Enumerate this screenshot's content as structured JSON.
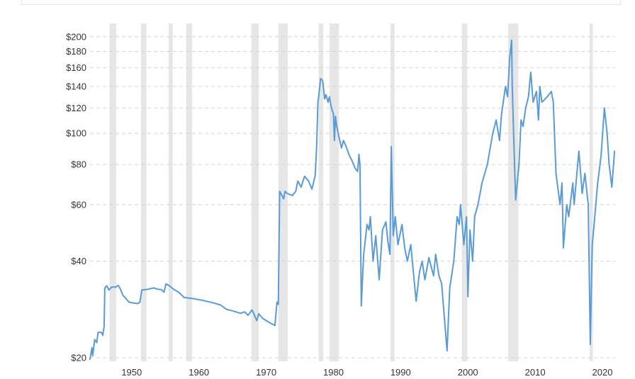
{
  "chart_data": {
    "type": "line",
    "title": "",
    "xlabel": "",
    "ylabel": "",
    "yscale": "log",
    "xlim": [
      1943.8,
      2021.9
    ],
    "ylim": [
      19.5,
      220
    ],
    "grid": true,
    "x_ticks": [
      {
        "value": 1950,
        "label": "1950"
      },
      {
        "value": 1960,
        "label": "1960"
      },
      {
        "value": 1970,
        "label": "1970"
      },
      {
        "value": 1980,
        "label": "1980"
      },
      {
        "value": 1990,
        "label": "1990"
      },
      {
        "value": 2000,
        "label": "2000"
      },
      {
        "value": 2010,
        "label": "2010"
      },
      {
        "value": 2020,
        "label": "2020"
      }
    ],
    "y_ticks": [
      {
        "value": 20,
        "label": "$20"
      },
      {
        "value": 40,
        "label": "$40"
      },
      {
        "value": 60,
        "label": "$60"
      },
      {
        "value": 80,
        "label": "$80"
      },
      {
        "value": 100,
        "label": "$100"
      },
      {
        "value": 120,
        "label": "$120"
      },
      {
        "value": 140,
        "label": "$140"
      },
      {
        "value": 160,
        "label": "$160"
      },
      {
        "value": 180,
        "label": "$180"
      },
      {
        "value": 200,
        "label": "$200"
      }
    ],
    "shaded_periods": [
      [
        1946.7,
        1947.7
      ],
      [
        1951.4,
        1952.2
      ],
      [
        1955.5,
        1956.1
      ],
      [
        1958.1,
        1959.0
      ],
      [
        1967.8,
        1968.9
      ],
      [
        1971.8,
        1973.2
      ],
      [
        1977.8,
        1978.5
      ],
      [
        1979.4,
        1980.8
      ],
      [
        1988.5,
        1989.1
      ],
      [
        1999.1,
        1999.9
      ],
      [
        2006.0,
        2007.5
      ],
      [
        2018.1,
        2018.6
      ]
    ],
    "series": [
      {
        "points": [
          [
            1943.8,
            19.8
          ],
          [
            1944.1,
            21.5
          ],
          [
            1944.2,
            20.3
          ],
          [
            1944.5,
            22.8
          ],
          [
            1944.8,
            22.3
          ],
          [
            1945.0,
            24
          ],
          [
            1945.5,
            24
          ],
          [
            1945.7,
            23.5
          ],
          [
            1945.9,
            25
          ],
          [
            1946.0,
            33
          ],
          [
            1946.3,
            33.5
          ],
          [
            1946.6,
            32.5
          ],
          [
            1947.0,
            33.2
          ],
          [
            1947.6,
            33.2
          ],
          [
            1948.0,
            33.6
          ],
          [
            1948.3,
            32.8
          ],
          [
            1948.7,
            31.3
          ],
          [
            1949.2,
            30.5
          ],
          [
            1949.6,
            29.8
          ],
          [
            1950.3,
            29.6
          ],
          [
            1950.8,
            29.5
          ],
          [
            1951.2,
            29.7
          ],
          [
            1951.5,
            32.5
          ],
          [
            1952.5,
            32.7
          ],
          [
            1953.3,
            33.0
          ],
          [
            1953.8,
            32.7
          ],
          [
            1954.4,
            32.6
          ],
          [
            1954.8,
            32.0
          ],
          [
            1955.1,
            34.0
          ],
          [
            1955.6,
            33.5
          ],
          [
            1956.3,
            32.6
          ],
          [
            1957.0,
            32.0
          ],
          [
            1957.8,
            30.8
          ],
          [
            1959.0,
            30.6
          ],
          [
            1960.5,
            30.2
          ],
          [
            1962.0,
            29.7
          ],
          [
            1963.2,
            29.2
          ],
          [
            1964.1,
            28.3
          ],
          [
            1965.0,
            28.0
          ],
          [
            1966.2,
            27.5
          ],
          [
            1966.8,
            27.8
          ],
          [
            1967.3,
            27.1
          ],
          [
            1967.9,
            28.2
          ],
          [
            1968.6,
            26.1
          ],
          [
            1968.9,
            27.4
          ],
          [
            1969.5,
            26.5
          ],
          [
            1970.4,
            25.8
          ],
          [
            1971.3,
            25.2
          ],
          [
            1971.6,
            29.8
          ],
          [
            1971.8,
            29.3
          ],
          [
            1972.0,
            66
          ],
          [
            1972.6,
            62.5
          ],
          [
            1972.8,
            66
          ],
          [
            1973.1,
            65
          ],
          [
            1973.9,
            64
          ],
          [
            1974.4,
            66
          ],
          [
            1974.7,
            71
          ],
          [
            1975.2,
            68
          ],
          [
            1975.7,
            73.5
          ],
          [
            1976.3,
            71
          ],
          [
            1976.8,
            67
          ],
          [
            1977.3,
            74
          ],
          [
            1977.5,
            90
          ],
          [
            1977.7,
            125
          ],
          [
            1977.8,
            130
          ],
          [
            1978.1,
            148
          ],
          [
            1978.4,
            146
          ],
          [
            1978.7,
            128
          ],
          [
            1978.9,
            132
          ],
          [
            1979.2,
            125
          ],
          [
            1979.4,
            130
          ],
          [
            1979.7,
            120
          ],
          [
            1980.0,
            115
          ],
          [
            1980.15,
            95
          ],
          [
            1980.3,
            113
          ],
          [
            1980.5,
            105
          ],
          [
            1980.8,
            98
          ],
          [
            1981.2,
            90
          ],
          [
            1981.5,
            95
          ],
          [
            1981.8,
            92
          ],
          [
            1982.4,
            85
          ],
          [
            1982.8,
            82
          ],
          [
            1983.2,
            78
          ],
          [
            1983.6,
            76
          ],
          [
            1983.8,
            86
          ],
          [
            1983.95,
            80
          ],
          [
            1984.15,
            29
          ],
          [
            1984.4,
            38
          ],
          [
            1984.5,
            42
          ],
          [
            1985.0,
            52
          ],
          [
            1985.3,
            50
          ],
          [
            1985.5,
            55
          ],
          [
            1985.9,
            40
          ],
          [
            1986.3,
            48
          ],
          [
            1986.8,
            35
          ],
          [
            1987.3,
            50
          ],
          [
            1987.8,
            53
          ],
          [
            1988.1,
            46
          ],
          [
            1988.4,
            42
          ],
          [
            1988.6,
            91
          ],
          [
            1988.9,
            48
          ],
          [
            1989.2,
            55
          ],
          [
            1989.6,
            45
          ],
          [
            1990.2,
            52
          ],
          [
            1990.6,
            44
          ],
          [
            1991.0,
            40
          ],
          [
            1991.5,
            45
          ],
          [
            1992.0,
            35
          ],
          [
            1992.3,
            30
          ],
          [
            1992.8,
            37
          ],
          [
            1993.2,
            40
          ],
          [
            1993.6,
            35
          ],
          [
            1994.2,
            41
          ],
          [
            1994.6,
            38
          ],
          [
            1994.9,
            36
          ],
          [
            1995.2,
            42
          ],
          [
            1995.7,
            36
          ],
          [
            1996.1,
            34
          ],
          [
            1996.6,
            25
          ],
          [
            1996.9,
            21
          ],
          [
            1997.3,
            33
          ],
          [
            1997.9,
            40
          ],
          [
            1998.4,
            55
          ],
          [
            1998.7,
            52
          ],
          [
            1998.9,
            60
          ],
          [
            1999.4,
            45
          ],
          [
            1999.8,
            55
          ],
          [
            2000.0,
            31
          ],
          [
            2000.3,
            50
          ],
          [
            2000.7,
            40
          ],
          [
            2001.0,
            55
          ],
          [
            2001.5,
            60
          ],
          [
            2002.1,
            70
          ],
          [
            2002.9,
            80
          ],
          [
            2003.7,
            100
          ],
          [
            2004.2,
            110
          ],
          [
            2004.7,
            95
          ],
          [
            2005.0,
            115
          ],
          [
            2005.6,
            140
          ],
          [
            2005.9,
            130
          ],
          [
            2006.2,
            170
          ],
          [
            2006.5,
            195
          ],
          [
            2006.6,
            140
          ],
          [
            2006.8,
            100
          ],
          [
            2007.1,
            62
          ],
          [
            2007.6,
            80
          ],
          [
            2007.9,
            110
          ],
          [
            2008.2,
            105
          ],
          [
            2008.6,
            120
          ],
          [
            2009.0,
            130
          ],
          [
            2009.35,
            155
          ],
          [
            2009.7,
            125
          ],
          [
            2010.2,
            135
          ],
          [
            2010.5,
            110
          ],
          [
            2010.7,
            140
          ],
          [
            2011.0,
            125
          ],
          [
            2011.8,
            130
          ],
          [
            2012.4,
            135
          ],
          [
            2012.7,
            125
          ],
          [
            2013.1,
            75
          ],
          [
            2013.7,
            60
          ],
          [
            2014.0,
            70
          ],
          [
            2014.2,
            44
          ],
          [
            2014.7,
            60
          ],
          [
            2015.0,
            55
          ],
          [
            2015.6,
            70
          ],
          [
            2015.8,
            60
          ],
          [
            2016.5,
            88
          ],
          [
            2017.0,
            65
          ],
          [
            2017.4,
            75
          ],
          [
            2017.9,
            60
          ],
          [
            2018.2,
            22
          ],
          [
            2018.5,
            45
          ],
          [
            2018.7,
            50
          ],
          [
            2019.3,
            70
          ],
          [
            2019.8,
            85
          ],
          [
            2020.3,
            120
          ],
          [
            2020.7,
            100
          ],
          [
            2021.0,
            80
          ],
          [
            2021.4,
            68
          ],
          [
            2021.8,
            88
          ]
        ]
      }
    ],
    "colors": {
      "line": "#5b9bd5",
      "band": "#e6e6e6",
      "grid": "#d4d4d4",
      "text": "#333333",
      "frame": "#e2e2e2"
    }
  }
}
